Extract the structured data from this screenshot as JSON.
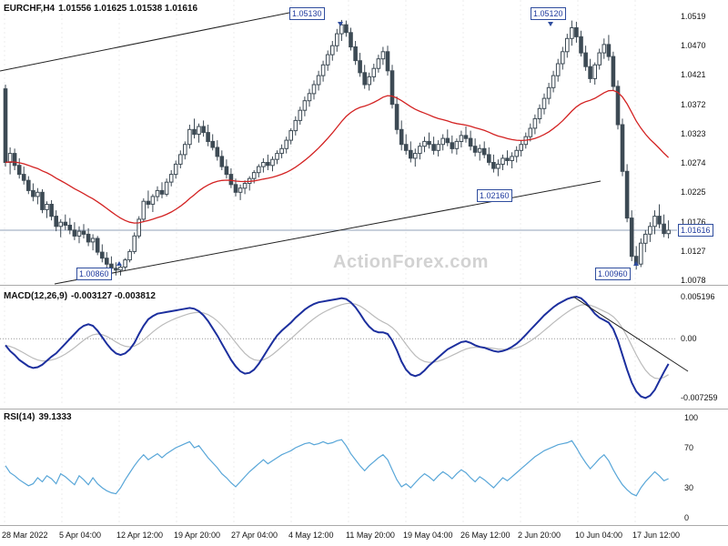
{
  "header": {
    "symbol": "EURCHF,H4",
    "ohlc": "1.01556 1.01625 1.01538 1.01616"
  },
  "watermark": "ActionForex.com",
  "panels": {
    "macd": {
      "title": "MACD(12,26,9)",
      "values": "-0.003127 -0.003812",
      "axis": [
        "0.005196",
        "0.00",
        "-0.007259"
      ]
    },
    "rsi": {
      "title": "RSI(14)",
      "value": "39.1333",
      "axis": [
        "100",
        "70",
        "30",
        "0"
      ]
    }
  },
  "price_axis": [
    "1.0519",
    "1.0470",
    "1.0421",
    "1.0372",
    "1.0323",
    "1.0274",
    "1.0225",
    "1.0176",
    "1.0127",
    "1.0078"
  ],
  "x_labels": [
    "28 Mar 2022",
    "5 Apr 04:00",
    "12 Apr 12:00",
    "19 Apr 20:00",
    "27 Apr 04:00",
    "4 May 12:00",
    "11 May 20:00",
    "19 May 04:00",
    "26 May 12:00",
    "2 Jun 20:00",
    "10 Jun 04:00",
    "17 Jun 12:00"
  ],
  "annotations": [
    "1.05130",
    "1.05120",
    "1.02160",
    "1.00860",
    "1.00960"
  ],
  "current_price": "1.01616",
  "colors": {
    "candle": "#3d4a54",
    "ma_line": "#d32222",
    "macd_line": "#1c2f9e",
    "macd_signal": "#bbbbbb",
    "rsi_line": "#58a6d8",
    "annotation": "#2f4d9e",
    "current_price_line": "#90a0b8",
    "watermark": "#d2d2d2"
  },
  "chart_data": {
    "type": "candlestick",
    "title": "EURCHF H4 with MACD(12,26,9) and RSI(14)",
    "symbol": "EURCHF",
    "timeframe": "H4",
    "price_range": [
      1.0078,
      1.0519
    ],
    "macd_range": [
      -0.007259,
      0.005196
    ],
    "rsi_range": [
      0,
      100
    ],
    "last_bar": {
      "open": 1.01556,
      "high": 1.01625,
      "low": 1.01538,
      "close": 1.01616
    },
    "macd_value": -0.003127,
    "macd_signal_value": -0.003812,
    "rsi_value": 39.1333,
    "key_levels": {
      "may_high": 1.0513,
      "jun_high": 1.0512,
      "apr_low": 1.0086,
      "jun_low": 1.0096,
      "trendline_level": 1.0216
    },
    "candles": [
      [
        1.0398,
        1.0405,
        1.0268,
        1.0275
      ],
      [
        1.0275,
        1.03,
        1.0255,
        1.029
      ],
      [
        1.029,
        1.0298,
        1.0262,
        1.027
      ],
      [
        1.027,
        1.0282,
        1.0248,
        1.0255
      ],
      [
        1.0255,
        1.0268,
        1.0238,
        1.0245
      ],
      [
        1.0245,
        1.0252,
        1.0222,
        1.0228
      ],
      [
        1.0228,
        1.024,
        1.021,
        1.0218
      ],
      [
        1.0218,
        1.0232,
        1.0205,
        1.0225
      ],
      [
        1.0225,
        1.023,
        1.019,
        1.0196
      ],
      [
        1.0196,
        1.021,
        1.0182,
        1.0205
      ],
      [
        1.0205,
        1.0212,
        1.0178,
        1.0185
      ],
      [
        1.0185,
        1.0195,
        1.016,
        1.0168
      ],
      [
        1.0168,
        1.018,
        1.015,
        1.0175
      ],
      [
        1.0175,
        1.0188,
        1.0162,
        1.017
      ],
      [
        1.017,
        1.0182,
        1.0155,
        1.0162
      ],
      [
        1.0162,
        1.0175,
        1.0145,
        1.0152
      ],
      [
        1.0152,
        1.0168,
        1.014,
        1.016
      ],
      [
        1.016,
        1.0172,
        1.0148,
        1.0155
      ],
      [
        1.0155,
        1.0165,
        1.0135,
        1.0142
      ],
      [
        1.0142,
        1.0155,
        1.0128,
        1.0148
      ],
      [
        1.0148,
        1.0152,
        1.012,
        1.0125
      ],
      [
        1.0125,
        1.0138,
        1.0108,
        1.0115
      ],
      [
        1.0115,
        1.0125,
        1.0098,
        1.0105
      ],
      [
        1.0105,
        1.0118,
        1.0092,
        1.0098
      ],
      [
        1.0098,
        1.0108,
        1.0086,
        1.0095
      ],
      [
        1.0095,
        1.0105,
        1.0086,
        1.01
      ],
      [
        1.01,
        1.0115,
        1.0095,
        1.0112
      ],
      [
        1.0112,
        1.013,
        1.0108,
        1.0126
      ],
      [
        1.0126,
        1.0158,
        1.0122,
        1.0152
      ],
      [
        1.0152,
        1.0185,
        1.0148,
        1.018
      ],
      [
        1.018,
        1.0215,
        1.0175,
        1.021
      ],
      [
        1.021,
        1.0228,
        1.0198,
        1.0205
      ],
      [
        1.0205,
        1.0222,
        1.0192,
        1.0218
      ],
      [
        1.0218,
        1.0235,
        1.021,
        1.0228
      ],
      [
        1.0228,
        1.0242,
        1.0215,
        1.0222
      ],
      [
        1.0222,
        1.0248,
        1.0218,
        1.0242
      ],
      [
        1.0242,
        1.0262,
        1.0235,
        1.0255
      ],
      [
        1.0255,
        1.0278,
        1.0248,
        1.0272
      ],
      [
        1.0272,
        1.0295,
        1.0265,
        1.0288
      ],
      [
        1.0288,
        1.031,
        1.028,
        1.0305
      ],
      [
        1.0305,
        1.0338,
        1.0298,
        1.033
      ],
      [
        1.033,
        1.0348,
        1.0315,
        1.0322
      ],
      [
        1.0322,
        1.034,
        1.0308,
        1.0335
      ],
      [
        1.0335,
        1.0345,
        1.0318,
        1.0325
      ],
      [
        1.0325,
        1.0338,
        1.0302,
        1.031
      ],
      [
        1.031,
        1.0322,
        1.0295,
        1.03
      ],
      [
        1.03,
        1.0312,
        1.0278,
        1.0285
      ],
      [
        1.0285,
        1.0295,
        1.0262,
        1.0268
      ],
      [
        1.0268,
        1.028,
        1.0248,
        1.0255
      ],
      [
        1.0255,
        1.0265,
        1.0232,
        1.0238
      ],
      [
        1.0238,
        1.0248,
        1.0218,
        1.0225
      ],
      [
        1.0225,
        1.0238,
        1.0212,
        1.0232
      ],
      [
        1.0232,
        1.0245,
        1.0222,
        1.024
      ],
      [
        1.024,
        1.0252,
        1.0228,
        1.0248
      ],
      [
        1.0248,
        1.0262,
        1.024,
        1.0258
      ],
      [
        1.0258,
        1.0272,
        1.025,
        1.0268
      ],
      [
        1.0268,
        1.0282,
        1.0258,
        1.0275
      ],
      [
        1.0275,
        1.0288,
        1.0262,
        1.027
      ],
      [
        1.027,
        1.0285,
        1.026,
        1.028
      ],
      [
        1.028,
        1.0295,
        1.0272,
        1.029
      ],
      [
        1.029,
        1.0305,
        1.0282,
        1.0298
      ],
      [
        1.0298,
        1.0318,
        1.029,
        1.0312
      ],
      [
        1.0312,
        1.0332,
        1.0305,
        1.0328
      ],
      [
        1.0328,
        1.0352,
        1.032,
        1.0345
      ],
      [
        1.0345,
        1.0368,
        1.0338,
        1.0362
      ],
      [
        1.0362,
        1.0385,
        1.0352,
        1.0378
      ],
      [
        1.0378,
        1.0398,
        1.0368,
        1.039
      ],
      [
        1.039,
        1.0412,
        1.038,
        1.0405
      ],
      [
        1.0405,
        1.0428,
        1.0395,
        1.042
      ],
      [
        1.042,
        1.0445,
        1.041,
        1.0438
      ],
      [
        1.0438,
        1.0462,
        1.0428,
        1.0455
      ],
      [
        1.0455,
        1.0478,
        1.0445,
        1.047
      ],
      [
        1.047,
        1.0498,
        1.046,
        1.049
      ],
      [
        1.049,
        1.0513,
        1.0478,
        1.0505
      ],
      [
        1.0505,
        1.0512,
        1.0485,
        1.0492
      ],
      [
        1.0492,
        1.05,
        1.0462,
        1.0468
      ],
      [
        1.0468,
        1.0478,
        1.0438,
        1.0445
      ],
      [
        1.0445,
        1.0458,
        1.0418,
        1.0425
      ],
      [
        1.0425,
        1.0438,
        1.0398,
        1.0405
      ],
      [
        1.0405,
        1.0425,
        1.0395,
        1.0418
      ],
      [
        1.0418,
        1.044,
        1.041,
        1.0432
      ],
      [
        1.0432,
        1.0455,
        1.0425,
        1.0448
      ],
      [
        1.0448,
        1.0468,
        1.0438,
        1.046
      ],
      [
        1.046,
        1.047,
        1.042,
        1.0428
      ],
      [
        1.0428,
        1.0438,
        1.0365,
        1.0372
      ],
      [
        1.0372,
        1.0385,
        1.0322,
        1.033
      ],
      [
        1.033,
        1.0345,
        1.0295,
        1.0305
      ],
      [
        1.0305,
        1.0322,
        1.0288,
        1.0295
      ],
      [
        1.0295,
        1.031,
        1.0275,
        1.0282
      ],
      [
        1.0282,
        1.0298,
        1.0268,
        1.029
      ],
      [
        1.029,
        1.0308,
        1.028,
        1.0302
      ],
      [
        1.0302,
        1.0318,
        1.0292,
        1.031
      ],
      [
        1.031,
        1.0325,
        1.0298,
        1.0305
      ],
      [
        1.0305,
        1.0318,
        1.0288,
        1.0295
      ],
      [
        1.0295,
        1.0312,
        1.0285,
        1.0305
      ],
      [
        1.0305,
        1.0322,
        1.0295,
        1.0315
      ],
      [
        1.0315,
        1.033,
        1.0302,
        1.0308
      ],
      [
        1.0308,
        1.032,
        1.029,
        1.0298
      ],
      [
        1.0298,
        1.0315,
        1.0288,
        1.031
      ],
      [
        1.031,
        1.0328,
        1.03,
        1.032
      ],
      [
        1.032,
        1.0335,
        1.0308,
        1.0315
      ],
      [
        1.0315,
        1.0328,
        1.0295,
        1.0302
      ],
      [
        1.0302,
        1.0315,
        1.0285,
        1.0292
      ],
      [
        1.0292,
        1.0305,
        1.0278,
        1.0298
      ],
      [
        1.0298,
        1.031,
        1.0282,
        1.0288
      ],
      [
        1.0288,
        1.03,
        1.027,
        1.0275
      ],
      [
        1.0275,
        1.0288,
        1.0258,
        1.0265
      ],
      [
        1.0265,
        1.028,
        1.0252,
        1.0272
      ],
      [
        1.0272,
        1.0288,
        1.0262,
        1.0282
      ],
      [
        1.0282,
        1.0295,
        1.027,
        1.0278
      ],
      [
        1.0278,
        1.0292,
        1.0265,
        1.0285
      ],
      [
        1.0285,
        1.0302,
        1.0275,
        1.0295
      ],
      [
        1.0295,
        1.0312,
        1.0285,
        1.0305
      ],
      [
        1.0305,
        1.0325,
        1.0298,
        1.0318
      ],
      [
        1.0318,
        1.034,
        1.031,
        1.0332
      ],
      [
        1.0332,
        1.0355,
        1.0322,
        1.0348
      ],
      [
        1.0348,
        1.0372,
        1.034,
        1.0365
      ],
      [
        1.0365,
        1.039,
        1.0355,
        1.0382
      ],
      [
        1.0382,
        1.0408,
        1.0372,
        1.04
      ],
      [
        1.04,
        1.0428,
        1.0392,
        1.042
      ],
      [
        1.042,
        1.0448,
        1.041,
        1.044
      ],
      [
        1.044,
        1.0468,
        1.043,
        1.046
      ],
      [
        1.046,
        1.049,
        1.045,
        1.0482
      ],
      [
        1.0482,
        1.0512,
        1.047,
        1.05
      ],
      [
        1.05,
        1.051,
        1.0475,
        1.0485
      ],
      [
        1.0485,
        1.0495,
        1.0452,
        1.0458
      ],
      [
        1.0458,
        1.047,
        1.0428,
        1.0435
      ],
      [
        1.0435,
        1.0448,
        1.0408,
        1.0415
      ],
      [
        1.0415,
        1.0442,
        1.0405,
        1.0438
      ],
      [
        1.0438,
        1.0465,
        1.043,
        1.0458
      ],
      [
        1.0458,
        1.0482,
        1.0448,
        1.0472
      ],
      [
        1.0472,
        1.0488,
        1.0445,
        1.0452
      ],
      [
        1.0452,
        1.046,
        1.0395,
        1.0402
      ],
      [
        1.0402,
        1.0412,
        1.033,
        1.0338
      ],
      [
        1.0338,
        1.0348,
        1.0252,
        1.026
      ],
      [
        1.026,
        1.0272,
        1.0175,
        1.0182
      ],
      [
        1.0182,
        1.0195,
        1.011,
        1.0118
      ],
      [
        1.0118,
        1.0135,
        1.0096,
        1.0105
      ],
      [
        1.0105,
        1.0148,
        1.01,
        1.014
      ],
      [
        1.014,
        1.0162,
        1.0125,
        1.0155
      ],
      [
        1.0155,
        1.0175,
        1.0142,
        1.0168
      ],
      [
        1.0168,
        1.0195,
        1.0155,
        1.0185
      ],
      [
        1.0185,
        1.0205,
        1.0165,
        1.0172
      ],
      [
        1.0172,
        1.0188,
        1.015,
        1.0156
      ],
      [
        1.0156,
        1.0178,
        1.0148,
        1.01616
      ]
    ],
    "macd": [
      -0.0008,
      -0.0015,
      -0.002,
      -0.0026,
      -0.003,
      -0.0034,
      -0.0036,
      -0.0035,
      -0.0032,
      -0.0027,
      -0.0022,
      -0.0018,
      -0.0012,
      -0.0006,
      0.0,
      0.0006,
      0.0012,
      0.0016,
      0.0018,
      0.0016,
      0.001,
      0.0002,
      -0.0006,
      -0.0013,
      -0.0018,
      -0.002,
      -0.0018,
      -0.0013,
      -0.0005,
      0.0006,
      0.0016,
      0.0024,
      0.0028,
      0.0031,
      0.0032,
      0.0033,
      0.0034,
      0.0035,
      0.0036,
      0.0037,
      0.0038,
      0.0037,
      0.0034,
      0.0029,
      0.0022,
      0.0013,
      0.0004,
      -0.0006,
      -0.0016,
      -0.0026,
      -0.0034,
      -0.004,
      -0.0043,
      -0.0042,
      -0.0038,
      -0.0031,
      -0.0022,
      -0.0013,
      -0.0004,
      0.0004,
      0.001,
      0.0015,
      0.002,
      0.0026,
      0.0031,
      0.0036,
      0.004,
      0.0043,
      0.0045,
      0.0046,
      0.0047,
      0.0048,
      0.0049,
      0.005,
      0.0049,
      0.0045,
      0.0039,
      0.0031,
      0.0022,
      0.0015,
      0.001,
      0.0008,
      0.0008,
      0.0006,
      -0.0002,
      -0.0014,
      -0.0028,
      -0.0038,
      -0.0044,
      -0.0046,
      -0.0044,
      -0.0039,
      -0.0033,
      -0.0028,
      -0.0023,
      -0.0018,
      -0.0013,
      -0.001,
      -0.0007,
      -0.0004,
      -0.0003,
      -0.0005,
      -0.0008,
      -0.001,
      -0.0011,
      -0.0013,
      -0.0015,
      -0.0016,
      -0.0015,
      -0.0013,
      -0.001,
      -0.0006,
      -0.0001,
      0.0005,
      0.0011,
      0.0017,
      0.0023,
      0.0029,
      0.0034,
      0.0039,
      0.0043,
      0.0046,
      0.0049,
      0.0051,
      0.0052,
      0.005,
      0.0045,
      0.0038,
      0.0031,
      0.0026,
      0.0023,
      0.002,
      0.0012,
      -0.0002,
      -0.002,
      -0.0038,
      -0.0054,
      -0.0065,
      -0.0071,
      -0.0073,
      -0.007,
      -0.0063,
      -0.0052,
      -0.0041,
      -0.0031
    ],
    "rsi": [
      52,
      45,
      42,
      38,
      35,
      32,
      34,
      40,
      36,
      42,
      39,
      34,
      44,
      41,
      37,
      33,
      42,
      38,
      33,
      40,
      34,
      30,
      27,
      25,
      24,
      30,
      38,
      45,
      52,
      58,
      63,
      58,
      61,
      64,
      60,
      64,
      67,
      70,
      72,
      74,
      76,
      70,
      72,
      66,
      60,
      55,
      50,
      44,
      40,
      35,
      31,
      36,
      41,
      46,
      50,
      54,
      58,
      54,
      57,
      60,
      63,
      65,
      67,
      70,
      72,
      74,
      75,
      73,
      74,
      76,
      74,
      75,
      77,
      78,
      72,
      64,
      58,
      52,
      47,
      52,
      56,
      60,
      63,
      58,
      48,
      38,
      31,
      34,
      30,
      35,
      40,
      44,
      41,
      37,
      42,
      46,
      43,
      39,
      44,
      48,
      45,
      40,
      36,
      41,
      38,
      34,
      30,
      35,
      40,
      37,
      41,
      45,
      49,
      53,
      57,
      61,
      64,
      67,
      69,
      71,
      73,
      74,
      75,
      77,
      70,
      62,
      55,
      49,
      54,
      59,
      63,
      57,
      48,
      40,
      33,
      28,
      24,
      22,
      30,
      36,
      41,
      46,
      42,
      37,
      39.1333
    ]
  }
}
